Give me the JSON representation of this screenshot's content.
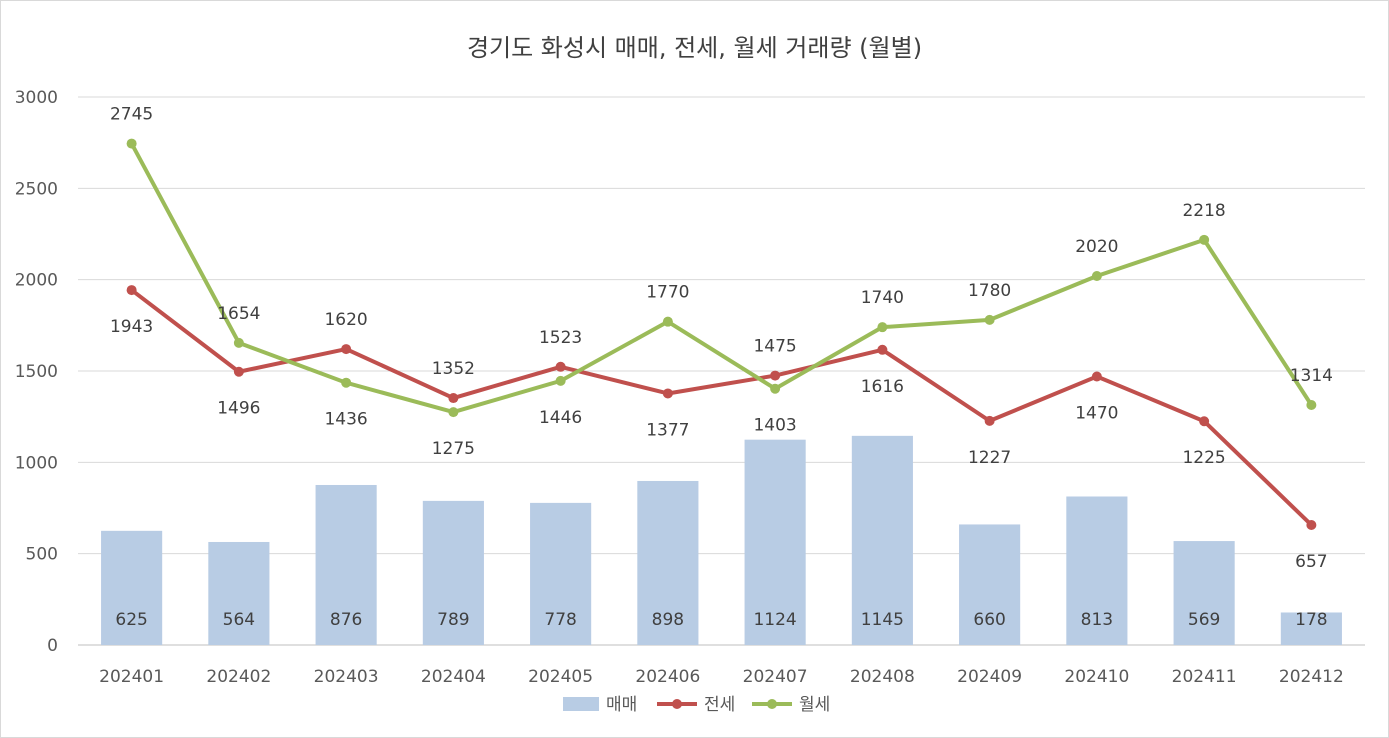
{
  "chart_data": {
    "type": "bar",
    "title": "경기도 화성시 매매, 전세, 월세 거래량 (월별)",
    "xlabel": "",
    "ylabel": "",
    "ylim": [
      0,
      3000
    ],
    "yticks": [
      0,
      500,
      1000,
      1500,
      2000,
      2500,
      3000
    ],
    "grid": true,
    "legend_position": "bottom",
    "categories": [
      "202401",
      "202402",
      "202403",
      "202404",
      "202405",
      "202406",
      "202407",
      "202408",
      "202409",
      "202410",
      "202411",
      "202412"
    ],
    "series": [
      {
        "name": "매매",
        "type": "bar",
        "color": "#b8cce4",
        "values": [
          625,
          564,
          876,
          789,
          778,
          898,
          1124,
          1145,
          660,
          813,
          569,
          178
        ],
        "labels": [
          "625",
          "564",
          "876",
          "789",
          "778",
          "898",
          "1124",
          "1145",
          "660",
          "813",
          "569",
          "178"
        ]
      },
      {
        "name": "전세",
        "type": "line",
        "color": "#c0504d",
        "values": [
          1943,
          1496,
          1620,
          1352,
          1523,
          1377,
          1475,
          1616,
          1227,
          1470,
          1225,
          657
        ],
        "labels": [
          "1943",
          "1496",
          "1620",
          "1352",
          "1523",
          "1377",
          "1475",
          "1616",
          "1227",
          "1470",
          "1225",
          "657"
        ]
      },
      {
        "name": "월세",
        "type": "line",
        "color": "#9bbb59",
        "values": [
          2745,
          1654,
          1436,
          1275,
          1446,
          1770,
          1403,
          1740,
          1780,
          2020,
          2218,
          1314
        ],
        "labels": [
          "2745",
          "1654",
          "1436",
          "1275",
          "1446",
          "1770",
          "1403",
          "1740",
          "1780",
          "2020",
          "2218",
          "1314"
        ]
      }
    ]
  }
}
